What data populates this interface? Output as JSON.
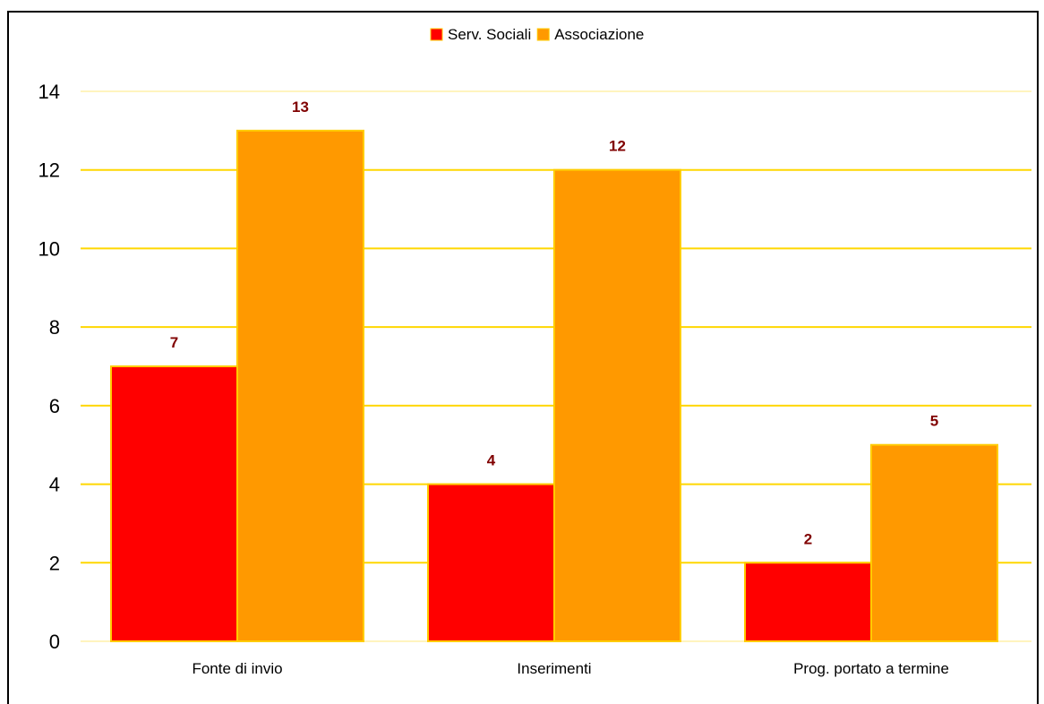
{
  "chart_data": {
    "type": "bar",
    "categories": [
      "Fonte di invio",
      "Inserimenti",
      "Prog. portato a termine"
    ],
    "series": [
      {
        "name": "Serv. Sociali",
        "values": [
          7,
          4,
          2
        ],
        "color": "#ff0000"
      },
      {
        "name": "Associazione",
        "values": [
          13,
          12,
          5
        ],
        "color": "#ff9900"
      }
    ],
    "ylim": [
      0,
      14
    ],
    "yticks": [
      0,
      2,
      4,
      6,
      8,
      10,
      12,
      14
    ],
    "grid": true,
    "legend_position": "top-center",
    "colors": {
      "gridline": "#ffd700",
      "bar_border": "#ffcc00",
      "data_label": "#800000"
    }
  }
}
